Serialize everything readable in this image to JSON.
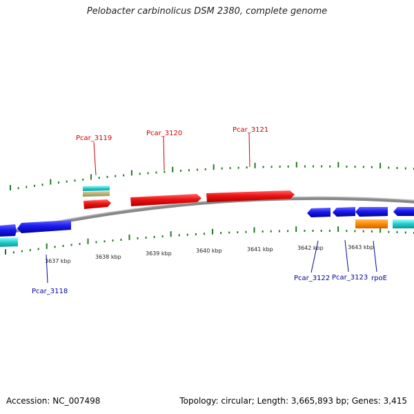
{
  "title": "Pelobacter carbinolicus DSM 2380, complete genome",
  "footer": {
    "accession": "Accession: NC_007498",
    "summary": "Topology: circular; Length: 3,665,893 bp; Genes: 3,415"
  },
  "kbp_labels": [
    "3637 kbp",
    "3638 kbp",
    "3639 kbp",
    "3640 kbp",
    "3641 kbp",
    "3642 kbp",
    "3643 kbp"
  ],
  "genes_top": [
    {
      "label": "Pcar_3119",
      "color": "#cc0000"
    },
    {
      "label": "Pcar_3120",
      "color": "#cc0000"
    },
    {
      "label": "Pcar_3121",
      "color": "#cc0000"
    }
  ],
  "genes_bottom": [
    {
      "label": "Pcar_3118",
      "color": "#000099"
    },
    {
      "label": "Pcar_3122",
      "color": "#000099"
    },
    {
      "label": "Pcar_3123",
      "color": "#000099"
    },
    {
      "label": "rpoE",
      "color": "#000099"
    }
  ],
  "colors": {
    "forward_gene": "#ee1111",
    "reverse_gene": "#1a1aee",
    "tick": "#227722",
    "backbone": "#888888",
    "cyan_feature": "#22cccc",
    "orange_feature": "#ff8800",
    "olive_feature": "#b0a860"
  }
}
